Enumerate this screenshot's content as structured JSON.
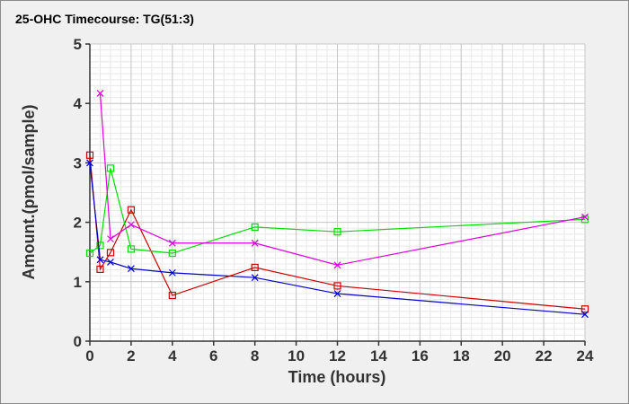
{
  "chart_data": {
    "type": "line",
    "title": "25-OHC Timecourse: TG(51:3)",
    "xlabel": "Time (hours)",
    "ylabel": "Amount.(pmol/sample)",
    "xlim": [
      0,
      24
    ],
    "ylim": [
      0,
      5
    ],
    "x_ticks": [
      0,
      2,
      4,
      6,
      8,
      10,
      12,
      14,
      16,
      18,
      20,
      22,
      24
    ],
    "y_ticks": [
      0,
      1,
      2,
      3,
      4,
      5
    ],
    "grid": true,
    "legend": "none",
    "series": [
      {
        "color": "#cc0000",
        "marker": "square",
        "points": [
          [
            0,
            3.13
          ],
          [
            0.5,
            1.21
          ],
          [
            1,
            1.49
          ],
          [
            2,
            2.21
          ],
          [
            4,
            0.77
          ],
          [
            8,
            1.24
          ],
          [
            12,
            0.93
          ],
          [
            24,
            0.54
          ]
        ]
      },
      {
        "color": "#00dd00",
        "marker": "square",
        "points": [
          [
            0,
            1.48
          ],
          [
            0.5,
            1.61
          ],
          [
            1,
            2.91
          ],
          [
            2,
            1.55
          ],
          [
            4,
            1.48
          ],
          [
            8,
            1.92
          ],
          [
            12,
            1.84
          ],
          [
            24,
            2.05
          ]
        ]
      },
      {
        "color": "#dd00dd",
        "marker": "x",
        "points": [
          [
            0.5,
            4.17
          ],
          [
            1,
            1.72
          ],
          [
            2,
            1.96
          ],
          [
            4,
            1.65
          ],
          [
            8,
            1.65
          ],
          [
            12,
            1.28
          ],
          [
            24,
            2.09
          ]
        ]
      },
      {
        "color": "#0000cc",
        "marker": "x",
        "points": [
          [
            0,
            3.0
          ],
          [
            0.5,
            1.37
          ],
          [
            1,
            1.33
          ],
          [
            2,
            1.22
          ],
          [
            4,
            1.15
          ],
          [
            8,
            1.07
          ],
          [
            12,
            0.8
          ],
          [
            24,
            0.45
          ]
        ]
      }
    ]
  }
}
